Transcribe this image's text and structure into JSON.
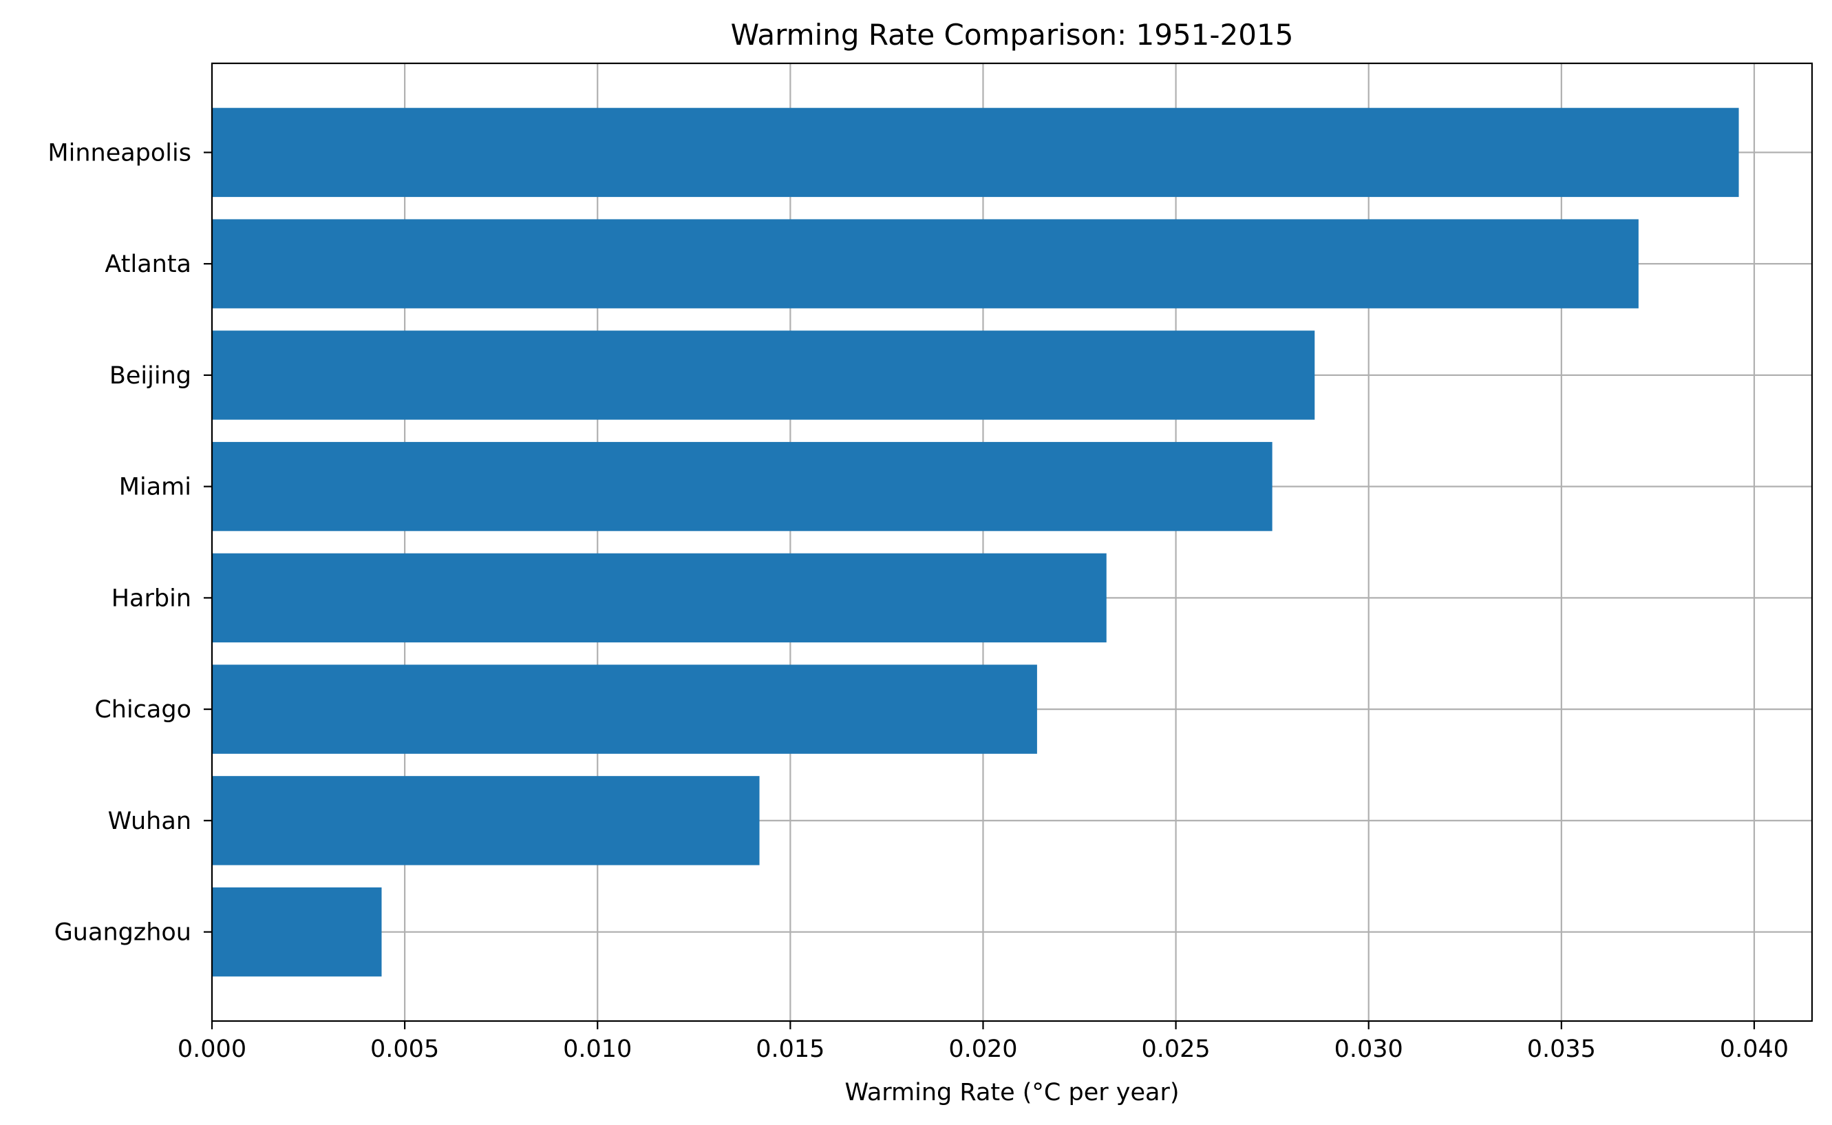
{
  "chart_data": {
    "type": "bar",
    "orientation": "horizontal",
    "title": "Warming Rate Comparison: 1951-2015",
    "xlabel": "Warming Rate (°C per year)",
    "ylabel": "",
    "categories": [
      "Minneapolis",
      "Atlanta",
      "Beijing",
      "Miami",
      "Harbin",
      "Chicago",
      "Wuhan",
      "Guangzhou"
    ],
    "values": [
      0.0396,
      0.037,
      0.0286,
      0.0275,
      0.0232,
      0.0214,
      0.0142,
      0.0044
    ],
    "xlim": [
      0,
      0.0415
    ],
    "xticks": [
      0.0,
      0.005,
      0.01,
      0.015,
      0.02,
      0.025,
      0.03,
      0.035,
      0.04
    ],
    "xtick_labels": [
      "0.000",
      "0.005",
      "0.010",
      "0.015",
      "0.020",
      "0.025",
      "0.030",
      "0.035",
      "0.040"
    ],
    "grid": true,
    "bar_color": "#1f77b4"
  }
}
